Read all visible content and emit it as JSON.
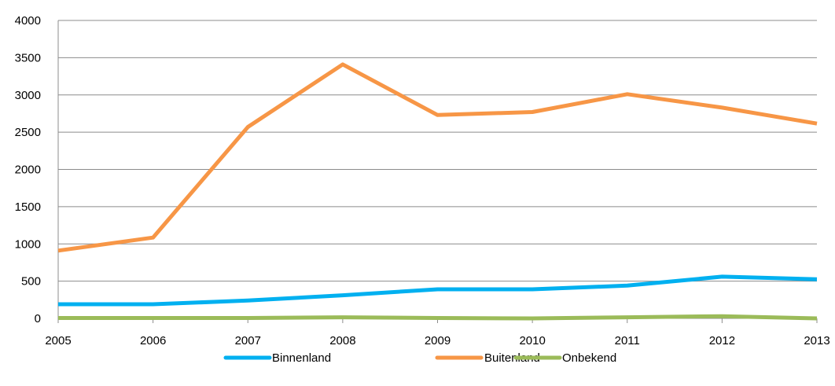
{
  "chart_data": {
    "type": "line",
    "title": "",
    "xlabel": "",
    "ylabel": "",
    "x": [
      "2005",
      "2006",
      "2007",
      "2008",
      "2009",
      "2010",
      "2011",
      "2012",
      "2013"
    ],
    "ylim": [
      0,
      4000
    ],
    "yticks": [
      "0",
      "500",
      "1000",
      "1500",
      "2000",
      "2500",
      "3000",
      "3500",
      "4000"
    ],
    "grid": true,
    "legend_position": "bottom",
    "series": [
      {
        "name": "Binnenland",
        "color": "#00b0f0",
        "values": [
          190,
          190,
          240,
          310,
          390,
          390,
          440,
          560,
          525
        ]
      },
      {
        "name": "Buitenland",
        "color": "#f79646",
        "values": [
          910,
          1085,
          2570,
          3410,
          2730,
          2770,
          3010,
          2830,
          2615
        ]
      },
      {
        "name": "Onbekend",
        "color": "#9bbb59",
        "values": [
          5,
          5,
          5,
          15,
          5,
          0,
          15,
          30,
          0
        ]
      }
    ]
  }
}
